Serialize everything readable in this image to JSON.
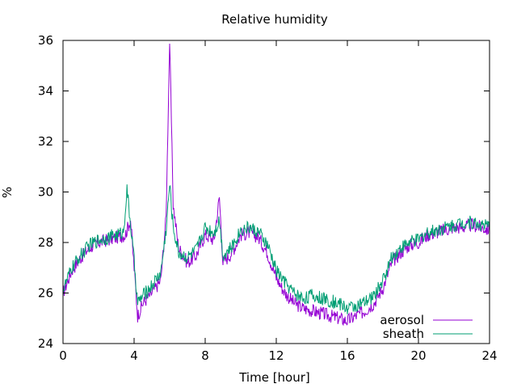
{
  "chart_data": {
    "type": "line",
    "title": "Relative humidity",
    "xlabel": "Time [hour]",
    "ylabel": "%",
    "xlim": [
      0,
      24
    ],
    "ylim": [
      24,
      36
    ],
    "x_ticks": [
      "0",
      "4",
      "8",
      "12",
      "16",
      "20",
      "24"
    ],
    "y_ticks": [
      "24",
      "26",
      "28",
      "30",
      "32",
      "34",
      "36"
    ],
    "grid": false,
    "legend_position": "bottom-right",
    "series": [
      {
        "name": "aerosol",
        "color": "#9400d3",
        "x": [
          0,
          0.5,
          1,
          1.5,
          2,
          2.5,
          3,
          3.5,
          3.8,
          4.0,
          4.2,
          4.5,
          5.0,
          5.5,
          5.8,
          6.0,
          6.2,
          6.5,
          7.0,
          7.5,
          8.0,
          8.5,
          8.8,
          9.0,
          9.5,
          10.0,
          10.5,
          11.0,
          11.5,
          12.0,
          12.5,
          13.0,
          13.5,
          14.0,
          14.5,
          15.0,
          15.5,
          16.0,
          16.5,
          17.0,
          17.5,
          18.0,
          18.5,
          19.0,
          19.5,
          20.0,
          20.5,
          21.0,
          21.5,
          22.0,
          22.5,
          23.0,
          23.5,
          24.0
        ],
        "y": [
          26.0,
          26.9,
          27.4,
          27.8,
          28.0,
          28.1,
          28.2,
          28.3,
          28.9,
          27.0,
          25.1,
          25.6,
          26.0,
          26.5,
          29.0,
          36.0,
          29.5,
          27.8,
          27.2,
          27.5,
          28.3,
          28.1,
          29.8,
          27.2,
          27.6,
          28.3,
          28.4,
          28.2,
          27.6,
          26.6,
          26.0,
          25.6,
          25.4,
          25.3,
          25.2,
          25.1,
          25.0,
          24.9,
          25.1,
          25.3,
          25.6,
          26.2,
          27.2,
          27.6,
          27.9,
          28.0,
          28.3,
          28.4,
          28.5,
          28.6,
          28.6,
          28.7,
          28.6,
          28.5
        ]
      },
      {
        "name": "sheath",
        "color": "#009e73",
        "x": [
          0,
          0.5,
          1,
          1.5,
          2,
          2.5,
          3,
          3.4,
          3.6,
          4.0,
          4.2,
          4.5,
          5.0,
          5.5,
          5.8,
          6.0,
          6.2,
          6.5,
          7.0,
          7.5,
          8.0,
          8.5,
          8.8,
          9.0,
          9.5,
          10.0,
          10.5,
          11.0,
          11.5,
          12.0,
          12.5,
          13.0,
          13.5,
          14.0,
          14.5,
          15.0,
          15.5,
          16.0,
          16.5,
          17.0,
          17.5,
          18.0,
          18.5,
          19.0,
          19.5,
          20.0,
          20.5,
          21.0,
          21.5,
          22.0,
          22.5,
          23.0,
          23.5,
          24.0
        ],
        "y": [
          26.1,
          27.0,
          27.5,
          27.9,
          28.1,
          28.2,
          28.3,
          28.4,
          30.1,
          27.3,
          25.6,
          25.9,
          26.3,
          26.8,
          28.5,
          30.3,
          28.6,
          27.6,
          27.4,
          27.7,
          28.6,
          28.4,
          28.9,
          27.5,
          27.8,
          28.5,
          28.6,
          28.4,
          27.9,
          26.9,
          26.4,
          26.0,
          25.8,
          25.9,
          25.8,
          25.7,
          25.6,
          25.4,
          25.5,
          25.6,
          25.9,
          26.5,
          27.4,
          27.8,
          28.0,
          28.1,
          28.4,
          28.5,
          28.6,
          28.7,
          28.8,
          28.8,
          28.7,
          28.6
        ]
      }
    ]
  }
}
